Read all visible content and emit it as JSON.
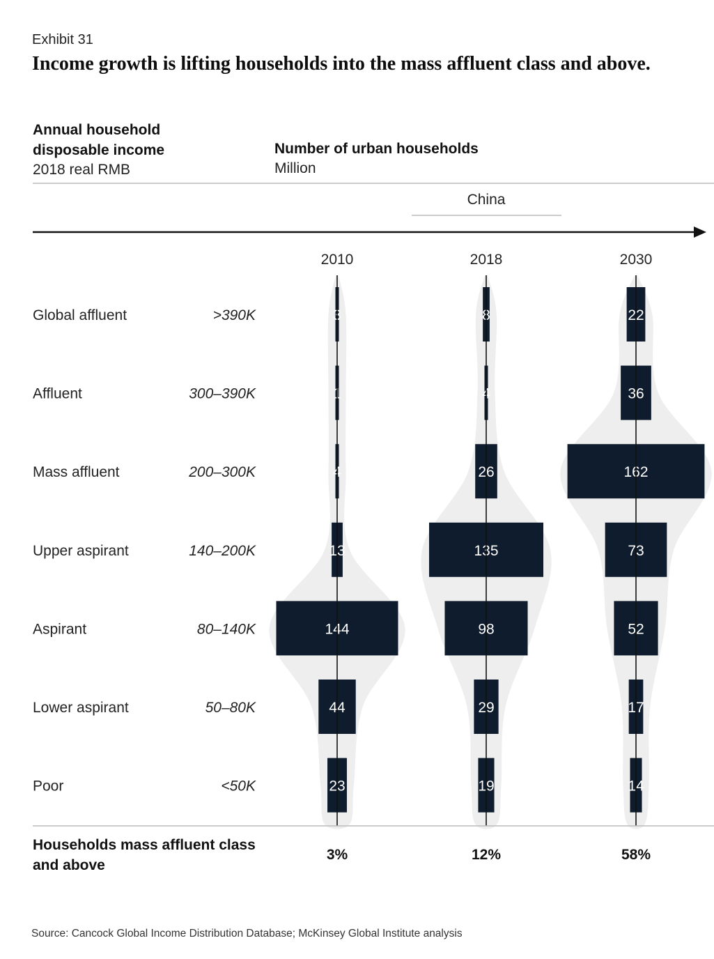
{
  "exhibit_label": "Exhibit 31",
  "title": "Income growth is lifting households into the mass affluent class and above.",
  "left_header": {
    "line1": "Annual household",
    "line2": "disposable income",
    "unit": "2018 real RMB"
  },
  "right_header": {
    "title": "Number of urban households",
    "unit": "Million"
  },
  "region_label": "China",
  "footer": {
    "label_line1": "Households mass affluent class",
    "label_line2": "and above"
  },
  "source": "Source: Cancock Global Income Distribution Database; McKinsey Global Institute analysis",
  "colors": {
    "bar": "#0f1c2e",
    "shape": "#eeeeee",
    "axis": "#111111",
    "rule": "#bbbbbb"
  },
  "chart_data": {
    "type": "bar",
    "orientation": "horizontal-centered",
    "categories": [
      "Global affluent",
      "Affluent",
      "Mass affluent",
      "Upper aspirant",
      "Aspirant",
      "Lower aspirant",
      "Poor"
    ],
    "income_ranges": [
      ">390K",
      "300–390K",
      "200–300K",
      "140–200K",
      "80–140K",
      "50–80K",
      "<50K"
    ],
    "x": [
      "2010",
      "2018",
      "2030"
    ],
    "series": [
      {
        "name": "2010",
        "values": [
          3,
          1,
          4,
          13,
          144,
          44,
          23
        ],
        "share_mass_affluent_and_above": "3%"
      },
      {
        "name": "2018",
        "values": [
          8,
          4,
          26,
          135,
          98,
          29,
          19
        ],
        "share_mass_affluent_and_above": "12%"
      },
      {
        "name": "2030",
        "values": [
          22,
          36,
          162,
          73,
          52,
          17,
          14
        ],
        "share_mass_affluent_and_above": "58%"
      }
    ]
  }
}
